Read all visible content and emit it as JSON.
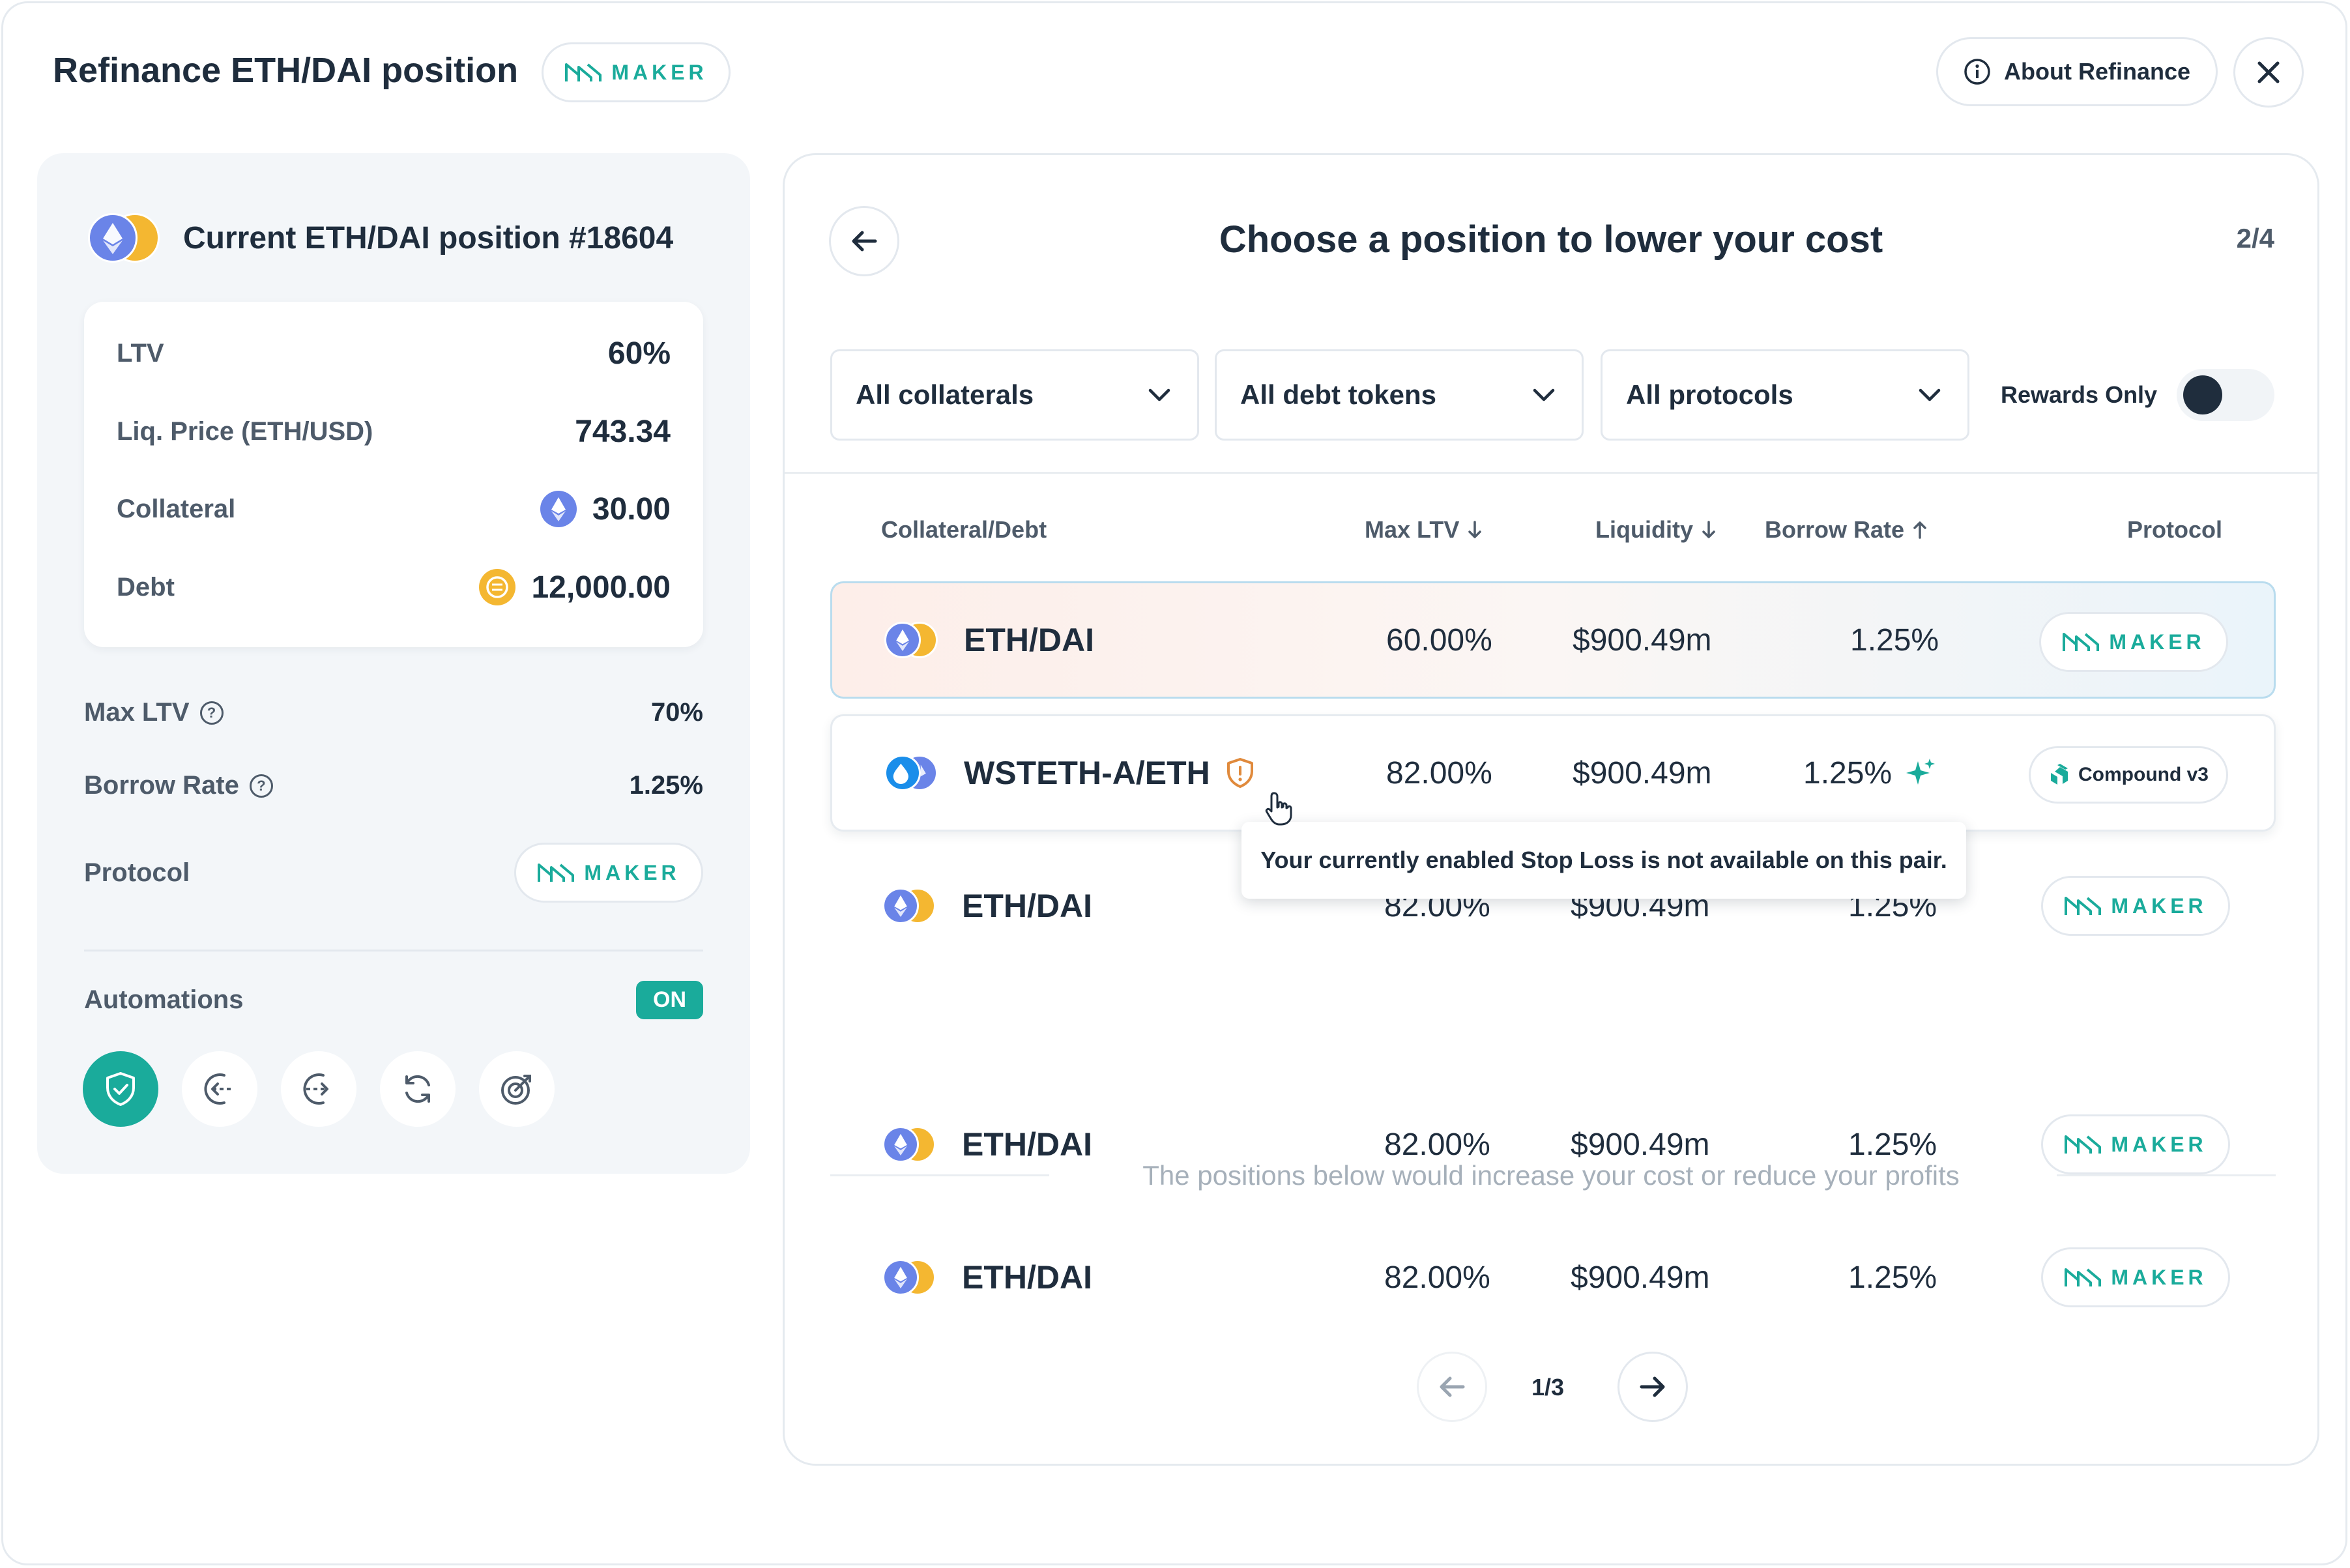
{
  "header": {
    "title": "Refinance ETH/DAI position",
    "protocol_badge": "MAKER",
    "about_label": "About Refinance"
  },
  "current_position": {
    "title": "Current ETH/DAI position #18604",
    "ltv_label": "LTV",
    "ltv_value": "60%",
    "liq_label": "Liq. Price (ETH/USD)",
    "liq_value": "743.34",
    "collateral_label": "Collateral",
    "collateral_value": "30.00",
    "debt_label": "Debt",
    "debt_value": "12,000.00",
    "max_ltv_label": "Max LTV",
    "max_ltv_value": "70%",
    "borrow_rate_label": "Borrow Rate",
    "borrow_rate_value": "1.25%",
    "protocol_label": "Protocol",
    "protocol_value": "MAKER",
    "automations_label": "Automations",
    "automations_status": "ON",
    "automation_icons": [
      "stop-loss-shield-icon",
      "auto-buy-icon",
      "auto-sell-icon",
      "refresh-icon",
      "take-profit-target-icon"
    ]
  },
  "selector": {
    "title": "Choose a position to lower your cost",
    "step": "2/4",
    "filters": {
      "collaterals": "All collaterals",
      "debt_tokens": "All debt tokens",
      "protocols": "All protocols"
    },
    "rewards_only_label": "Rewards Only",
    "rewards_only_enabled": false,
    "columns": {
      "pair": "Collateral/Debt",
      "max_ltv": "Max LTV",
      "liquidity": "Liquidity",
      "borrow_rate": "Borrow Rate",
      "protocol": "Protocol"
    },
    "rows": [
      {
        "pair": "ETH/DAI",
        "max_ltv": "60.00%",
        "liquidity": "$900.49m",
        "borrow_rate": "1.25%",
        "protocol": "MAKER"
      },
      {
        "pair": "WSTETH-A/ETH",
        "max_ltv": "82.00%",
        "liquidity": "$900.49m",
        "borrow_rate": "1.25%",
        "protocol": "Compound v3"
      },
      {
        "pair": "ETH/DAI",
        "max_ltv": "82.00%",
        "liquidity": "$900.49m",
        "borrow_rate": "1.25%",
        "protocol": "MAKER"
      },
      {
        "pair": "ETH/DAI",
        "max_ltv": "82.00%",
        "liquidity": "$900.49m",
        "borrow_rate": "1.25%",
        "protocol": "MAKER"
      },
      {
        "pair": "ETH/DAI",
        "max_ltv": "82.00%",
        "liquidity": "$900.49m",
        "borrow_rate": "1.25%",
        "protocol": "MAKER"
      }
    ],
    "tooltip": "Your currently enabled Stop Loss is not available on this pair.",
    "separator_text": "The positions below would increase your cost or reduce your profits",
    "pagination": "1/3"
  },
  "colors": {
    "accent": "#1aab9b",
    "text": "#1f2d3d",
    "muted": "#4e5b6a",
    "warning": "#e08a3c"
  }
}
